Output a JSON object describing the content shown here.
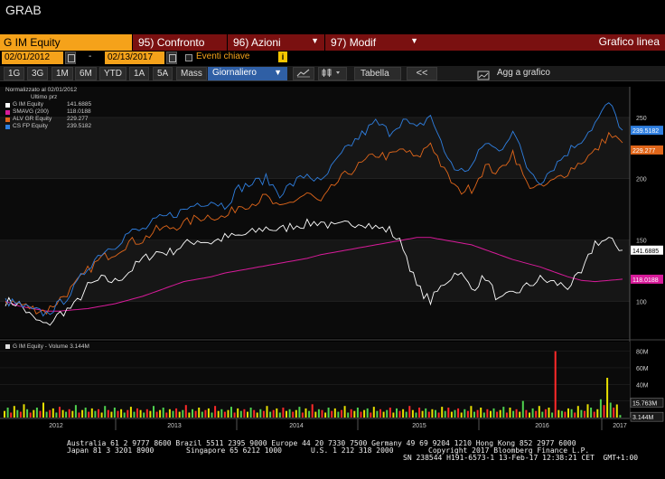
{
  "window": {
    "title": "GRAB"
  },
  "function_bar": {
    "security": "G IM Equity",
    "menus": [
      {
        "num": "95)",
        "label": "Confronto",
        "has_arrow": false
      },
      {
        "num": "96)",
        "label": "Azioni",
        "has_arrow": true
      },
      {
        "num": "97)",
        "label": "Modif",
        "has_arrow": true
      }
    ],
    "chart_type": "Grafico linea"
  },
  "date_bar": {
    "start_date": "02/01/2012",
    "separator": "-",
    "end_date": "02/13/2017",
    "events_label": "Eventi chiave",
    "info_icon": "i"
  },
  "period_bar": {
    "periods": [
      "1G",
      "3G",
      "1M",
      "6M",
      "YTD",
      "1A",
      "5A",
      "Mass"
    ],
    "frequency": "Giornaliero",
    "table_label": "Tabella",
    "collapse_label": "<<",
    "add_label": "Agg a grafico"
  },
  "legend": {
    "header1": "Normalizzato al 02/01/2012",
    "header2": "Ultimo prz",
    "items": [
      {
        "name": "G IM Equity",
        "value": "141.6885",
        "color": "#ffffff"
      },
      {
        "name": "SMAVG (200)",
        "value": "118.0188",
        "color": "#d81b9a"
      },
      {
        "name": "ALV GR Equity",
        "value": "229.277",
        "color": "#e0661a"
      },
      {
        "name": "CS FP Equity",
        "value": "239.5182",
        "color": "#2f7fe0"
      }
    ]
  },
  "volume_legend": {
    "label": "G IM Equity - Volume 3.144M"
  },
  "chart_data": [
    {
      "type": "line",
      "x_axis_labels": [
        "2012",
        "2013",
        "2014",
        "2015",
        "2016",
        "2017"
      ],
      "y_ticks": [
        100,
        150,
        200,
        250
      ],
      "ylim": [
        70,
        275
      ],
      "grid": true,
      "series": [
        {
          "name": "G IM Equity",
          "color": "#ffffff",
          "last": "141.6885",
          "values": [
            100,
            98,
            86,
            80,
            90,
            96,
            112,
            118,
            116,
            124,
            134,
            140,
            140,
            146,
            150,
            148,
            152,
            153,
            156,
            160,
            158,
            162,
            163,
            165,
            160,
            163,
            165,
            160,
            158,
            145,
            112,
            100,
            115,
            125,
            110,
            120,
            100,
            106,
            112,
            118,
            115,
            112,
            122,
            148,
            150,
            141.7
          ]
        },
        {
          "name": "SMAVG (200)",
          "color": "#d81b9a",
          "last": "118.0188",
          "values": [
            100,
            96,
            94,
            92,
            92,
            93,
            94,
            96,
            98,
            101,
            104,
            108,
            112,
            116,
            118,
            120,
            123,
            125,
            127,
            129,
            131,
            133,
            135,
            138,
            140,
            142,
            144,
            146,
            148,
            150,
            152,
            152,
            150,
            148,
            146,
            142,
            138,
            134,
            131,
            128,
            124,
            120,
            117,
            116,
            117,
            118.0
          ]
        },
        {
          "name": "ALV GR Equity",
          "color": "#e0661a",
          "last": "229.277",
          "values": [
            100,
            98,
            94,
            92,
            102,
            112,
            125,
            135,
            140,
            148,
            150,
            158,
            160,
            163,
            168,
            170,
            168,
            178,
            180,
            185,
            175,
            182,
            188,
            180,
            195,
            205,
            212,
            220,
            218,
            224,
            216,
            230,
            206,
            190,
            192,
            210,
            205,
            222,
            196,
            192,
            198,
            206,
            214,
            222,
            236,
            229.3
          ]
        },
        {
          "name": "CS FP Equity",
          "color": "#2f7fe0",
          "last": "239.5182",
          "values": [
            100,
            97,
            92,
            90,
            98,
            110,
            128,
            140,
            146,
            156,
            158,
            166,
            170,
            174,
            180,
            182,
            178,
            192,
            196,
            200,
            188,
            196,
            204,
            196,
            212,
            226,
            236,
            246,
            238,
            248,
            240,
            252,
            222,
            205,
            210,
            230,
            222,
            240,
            210,
            198,
            210,
            222,
            232,
            245,
            262,
            239.5
          ]
        }
      ]
    },
    {
      "type": "bar",
      "title": "G IM Equity - Volume 3.144M",
      "y_ticks": [
        "80M",
        "60M",
        "40M",
        "20M"
      ],
      "last_labels": [
        "15.763M",
        "3.144M"
      ],
      "ylim": [
        0,
        85
      ],
      "grid": true,
      "colors": [
        "#e8e000",
        "#4fd24f",
        "#ff2a2a"
      ],
      "values": [
        8,
        12,
        6,
        14,
        9,
        7,
        16,
        10,
        6,
        9,
        12,
        8,
        18,
        7,
        9,
        11,
        6,
        13,
        9,
        7,
        10,
        8,
        15,
        6,
        9,
        12,
        7,
        11,
        8,
        10,
        6,
        14,
        9,
        7,
        12,
        8,
        10,
        6,
        9,
        13,
        7,
        11,
        9,
        6,
        10,
        8,
        14,
        7,
        9,
        12,
        6,
        10,
        8,
        11,
        7,
        9,
        15,
        6,
        10,
        8,
        12,
        7,
        9,
        11,
        6,
        14,
        8,
        10,
        7,
        9,
        13,
        6,
        11,
        8,
        10,
        7,
        12,
        9,
        6,
        10,
        8,
        14,
        7,
        9,
        11,
        6,
        12,
        8,
        10,
        7,
        9,
        13,
        6,
        11,
        8,
        16,
        7,
        10,
        9,
        6,
        12,
        8,
        11,
        7,
        9,
        14,
        6,
        10,
        8,
        12,
        7,
        9,
        11,
        6,
        13,
        8,
        10,
        7,
        9,
        12,
        6,
        11,
        8,
        10,
        7,
        14,
        9,
        6,
        12,
        8,
        11,
        7,
        10,
        9,
        6,
        13,
        8,
        12,
        7,
        9,
        11,
        6,
        10,
        8,
        14,
        7,
        9,
        12,
        6,
        10,
        8,
        11,
        7,
        9,
        13,
        6,
        12,
        8,
        10,
        7,
        20,
        9,
        6,
        11,
        8,
        14,
        7,
        10,
        12,
        6,
        80,
        9,
        8,
        7,
        11,
        10,
        6,
        14,
        9,
        8,
        16,
        12,
        7,
        10,
        22,
        15,
        48,
        18,
        12,
        15.8,
        3.1
      ]
    }
  ],
  "footer": {
    "line1": "Australia 61 2 9777 8600 Brazil 5511 2395 9000 Europe 44 20 7330 7500 Germany 49 69 9204 1210 Hong Kong 852 2977 6000",
    "line2a": "Japan 81 3 3201 8900",
    "line2b": "Singapore 65 6212 1000",
    "line2c": "U.S. 1 212 318 2000",
    "line2d": "Copyright 2017 Bloomberg Finance L.P.",
    "line3": "SN 238544 H191-6573-1 13-Feb-17 12:38:21 CET  GMT+1:00"
  }
}
